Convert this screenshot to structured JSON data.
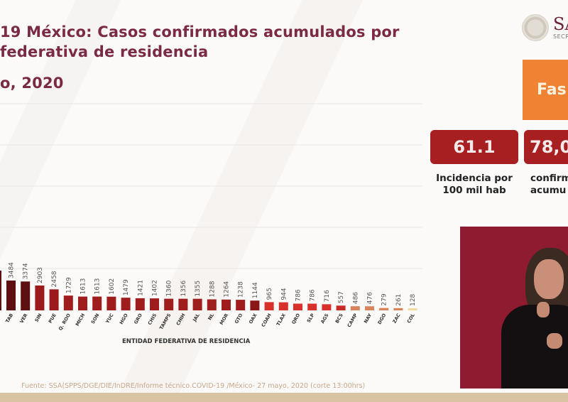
{
  "header": {
    "title_line1": "19 México: Casos confirmados acumulados por",
    "title_line2": "federativa de residencia",
    "title_line3": "o, 2020"
  },
  "logo": {
    "name": "SA",
    "subtitle": "SECRET"
  },
  "phase_box": {
    "label": "Fas",
    "color": "#ef8233"
  },
  "stats": [
    {
      "value": "61.1",
      "label_line1": "Incidencia por",
      "label_line2": "100 mil hab"
    },
    {
      "value": "78,0",
      "label_line1": "confirm",
      "label_line2": "acumu"
    }
  ],
  "source_note": "Fuente: SSA(SPPS/DGE/DIE/InDRE/Informe técnico.COVID-19 /México- 27 mayo, 2020 (corte 13:00hrs)",
  "colors": {
    "title": "#7b2a45",
    "stat_box": "#a81f22",
    "video_bg": "#8e1b30",
    "footer_band": "#d8c3a3"
  },
  "chart_data": {
    "type": "bar",
    "title": "Casos confirmados acumulados por entidad federativa de residencia",
    "xlabel": "ENTIDAD FEDERATIVA DE RESIDENCIA",
    "ylabel": "",
    "grid": true,
    "categories": [
      "TAB",
      "VER",
      "SIN",
      "PUE",
      "Q. ROO",
      "MICH",
      "SON",
      "YUC",
      "HGO",
      "GRO",
      "CHIS",
      "TAMPS",
      "CHIH",
      "JAL",
      "NL",
      "MOR",
      "GTO",
      "OAX",
      "COAH",
      "TLAX",
      "QRO",
      "SLP",
      "AGS",
      "BCS",
      "CAMP",
      "NAY",
      "DGO",
      "ZAC",
      "COL"
    ],
    "values": [
      3484,
      3374,
      2903,
      2458,
      1729,
      1613,
      1613,
      1602,
      1479,
      1421,
      1402,
      1360,
      1356,
      1355,
      1288,
      1264,
      1238,
      1144,
      965,
      944,
      786,
      786,
      716,
      557,
      486,
      476,
      279,
      261,
      128
    ],
    "colors": [
      "#5e0f12",
      "#5e0f12",
      "#9c1a1c",
      "#9c1a1c",
      "#a01d1d",
      "#a01d1d",
      "#a01d1d",
      "#a01d1d",
      "#a01d1d",
      "#a01d1d",
      "#a01d1d",
      "#a01d1d",
      "#a01d1d",
      "#a01d1d",
      "#a01d1d",
      "#a01d1d",
      "#a01d1d",
      "#8a1618",
      "#d8302a",
      "#d8302a",
      "#d8302a",
      "#d8302a",
      "#d8302a",
      "#c82a28",
      "#d9835a",
      "#d9835a",
      "#d9835a",
      "#d9835a",
      "#eedc9a"
    ]
  }
}
